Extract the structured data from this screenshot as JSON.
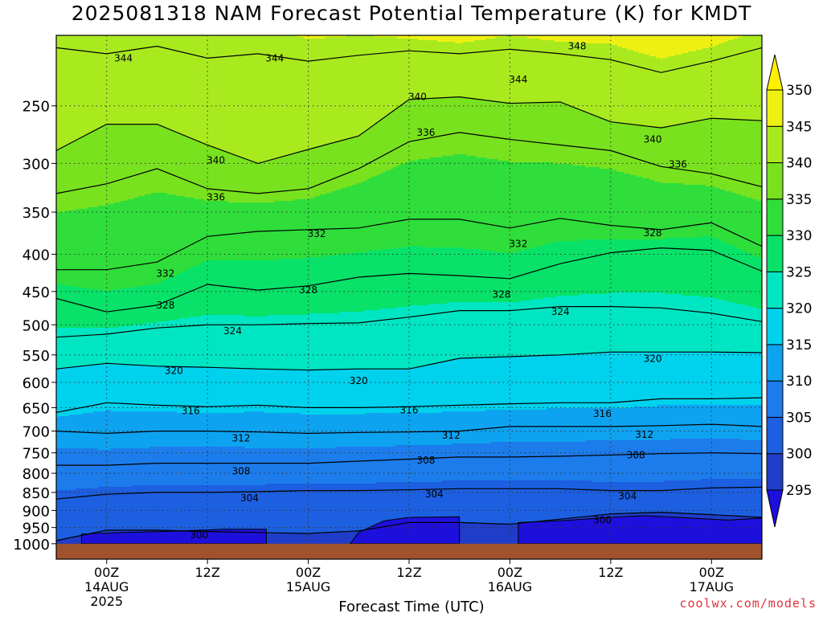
{
  "title": "2025081318 NAM Forecast Potential Temperature (K) for KMDT",
  "credit": "coolwx.com/models",
  "chart_data": {
    "type": "heatmap",
    "title": "2025081318 NAM Forecast Potential Temperature (K) for KMDT",
    "xlabel": "Forecast Time (UTC)",
    "ylabel": "",
    "y_scale": "log",
    "y_inverted": true,
    "ylim": [
      1050,
      200
    ],
    "y_ticks": [
      250,
      300,
      350,
      400,
      450,
      500,
      550,
      600,
      650,
      700,
      750,
      800,
      850,
      900,
      950,
      1000
    ],
    "x_range_hours": [
      0,
      84
    ],
    "x_ticks": [
      {
        "hour": 6,
        "label": [
          "00Z",
          "14AUG",
          "2025"
        ]
      },
      {
        "hour": 18,
        "label": [
          "12Z"
        ]
      },
      {
        "hour": 30,
        "label": [
          "00Z",
          "15AUG"
        ]
      },
      {
        "hour": 42,
        "label": [
          "12Z"
        ]
      },
      {
        "hour": 54,
        "label": [
          "00Z",
          "16AUG"
        ]
      },
      {
        "hour": 66,
        "label": [
          "12Z"
        ]
      },
      {
        "hour": 78,
        "label": [
          "00Z",
          "17AUG"
        ]
      }
    ],
    "grid": true,
    "colorbar": {
      "levels": [
        295,
        300,
        305,
        310,
        315,
        320,
        325,
        330,
        335,
        340,
        345,
        350
      ],
      "colors": [
        "#1e10dc",
        "#1f3dc8",
        "#1c5fe0",
        "#1c7ceb",
        "#0ea3f0",
        "#00d2ee",
        "#00e6c2",
        "#08e268",
        "#2fde3a",
        "#78e21e",
        "#a9ea1e",
        "#eef014",
        "#fff000"
      ],
      "labels": [
        "295",
        "300",
        "305",
        "310",
        "315",
        "320",
        "325",
        "330",
        "335",
        "340",
        "345",
        "350"
      ]
    },
    "contour_levels": [
      300,
      304,
      308,
      312,
      316,
      320,
      324,
      328,
      332,
      336,
      340,
      344,
      348
    ],
    "series": [
      {
        "theta": 344,
        "points": [
          [
            0,
            208
          ],
          [
            6,
            212
          ],
          [
            12,
            207
          ],
          [
            18,
            215
          ],
          [
            24,
            212
          ],
          [
            30,
            217
          ],
          [
            36,
            213
          ],
          [
            42,
            210
          ],
          [
            48,
            212
          ],
          [
            54,
            209
          ],
          [
            60,
            212
          ],
          [
            66,
            216
          ],
          [
            72,
            225
          ],
          [
            78,
            217
          ],
          [
            84,
            208
          ]
        ]
      },
      {
        "theta": 340,
        "points": [
          [
            0,
            288
          ],
          [
            6,
            265
          ],
          [
            12,
            265
          ],
          [
            18,
            283
          ],
          [
            24,
            300
          ],
          [
            30,
            287
          ],
          [
            36,
            275
          ],
          [
            42,
            245
          ],
          [
            48,
            243
          ],
          [
            54,
            248
          ],
          [
            60,
            247
          ],
          [
            66,
            263
          ],
          [
            72,
            268
          ],
          [
            78,
            260
          ],
          [
            84,
            262
          ]
        ]
      },
      {
        "theta": 336,
        "points": [
          [
            0,
            330
          ],
          [
            6,
            320
          ],
          [
            12,
            305
          ],
          [
            18,
            325
          ],
          [
            24,
            330
          ],
          [
            30,
            325
          ],
          [
            36,
            305
          ],
          [
            42,
            280
          ],
          [
            48,
            272
          ],
          [
            54,
            278
          ],
          [
            60,
            283
          ],
          [
            66,
            288
          ],
          [
            72,
            303
          ],
          [
            78,
            310
          ],
          [
            84,
            323
          ]
        ]
      },
      {
        "theta": 332,
        "points": [
          [
            0,
            420
          ],
          [
            6,
            420
          ],
          [
            12,
            410
          ],
          [
            18,
            378
          ],
          [
            24,
            372
          ],
          [
            30,
            370
          ],
          [
            36,
            368
          ],
          [
            42,
            358
          ],
          [
            48,
            358
          ],
          [
            54,
            368
          ],
          [
            60,
            357
          ],
          [
            66,
            365
          ],
          [
            72,
            370
          ],
          [
            78,
            362
          ],
          [
            84,
            390
          ]
        ]
      },
      {
        "theta": 328,
        "points": [
          [
            0,
            460
          ],
          [
            6,
            480
          ],
          [
            12,
            470
          ],
          [
            18,
            440
          ],
          [
            24,
            448
          ],
          [
            30,
            442
          ],
          [
            36,
            430
          ],
          [
            42,
            425
          ],
          [
            48,
            428
          ],
          [
            54,
            432
          ],
          [
            60,
            412
          ],
          [
            66,
            398
          ],
          [
            72,
            392
          ],
          [
            78,
            395
          ],
          [
            84,
            422
          ]
        ]
      },
      {
        "theta": 324,
        "points": [
          [
            0,
            520
          ],
          [
            6,
            515
          ],
          [
            12,
            505
          ],
          [
            18,
            500
          ],
          [
            24,
            500
          ],
          [
            30,
            498
          ],
          [
            36,
            497
          ],
          [
            42,
            488
          ],
          [
            48,
            478
          ],
          [
            54,
            478
          ],
          [
            60,
            472
          ],
          [
            66,
            472
          ],
          [
            72,
            474
          ],
          [
            78,
            482
          ],
          [
            84,
            495
          ]
        ]
      },
      {
        "theta": 320,
        "points": [
          [
            0,
            575
          ],
          [
            6,
            565
          ],
          [
            12,
            570
          ],
          [
            18,
            572
          ],
          [
            24,
            575
          ],
          [
            30,
            577
          ],
          [
            36,
            575
          ],
          [
            42,
            575
          ],
          [
            48,
            556
          ],
          [
            54,
            553
          ],
          [
            60,
            550
          ],
          [
            66,
            545
          ],
          [
            72,
            545
          ],
          [
            78,
            545
          ],
          [
            84,
            546
          ]
        ]
      },
      {
        "theta": 316,
        "points": [
          [
            0,
            660
          ],
          [
            6,
            640
          ],
          [
            12,
            645
          ],
          [
            18,
            648
          ],
          [
            24,
            645
          ],
          [
            30,
            650
          ],
          [
            36,
            650
          ],
          [
            42,
            648
          ],
          [
            48,
            645
          ],
          [
            54,
            642
          ],
          [
            60,
            640
          ],
          [
            66,
            640
          ],
          [
            72,
            632
          ],
          [
            78,
            632
          ],
          [
            84,
            630
          ]
        ]
      },
      {
        "theta": 312,
        "points": [
          [
            0,
            700
          ],
          [
            6,
            705
          ],
          [
            12,
            700
          ],
          [
            18,
            700
          ],
          [
            24,
            702
          ],
          [
            30,
            705
          ],
          [
            36,
            703
          ],
          [
            42,
            702
          ],
          [
            48,
            700
          ],
          [
            54,
            690
          ],
          [
            60,
            690
          ],
          [
            66,
            690
          ],
          [
            72,
            688
          ],
          [
            78,
            685
          ],
          [
            84,
            690
          ]
        ]
      },
      {
        "theta": 308,
        "points": [
          [
            0,
            780
          ],
          [
            6,
            780
          ],
          [
            12,
            775
          ],
          [
            18,
            775
          ],
          [
            24,
            775
          ],
          [
            30,
            775
          ],
          [
            36,
            770
          ],
          [
            42,
            765
          ],
          [
            48,
            760
          ],
          [
            54,
            760
          ],
          [
            60,
            758
          ],
          [
            66,
            755
          ],
          [
            72,
            752
          ],
          [
            78,
            750
          ],
          [
            84,
            752
          ]
        ]
      },
      {
        "theta": 304,
        "points": [
          [
            0,
            868
          ],
          [
            6,
            855
          ],
          [
            12,
            850
          ],
          [
            18,
            850
          ],
          [
            24,
            848
          ],
          [
            30,
            845
          ],
          [
            36,
            845
          ],
          [
            42,
            843
          ],
          [
            48,
            840
          ],
          [
            54,
            840
          ],
          [
            60,
            840
          ],
          [
            66,
            845
          ],
          [
            72,
            845
          ],
          [
            78,
            838
          ],
          [
            84,
            836
          ]
        ]
      },
      {
        "theta": 300,
        "points": [
          [
            0,
            990
          ],
          [
            6,
            958
          ],
          [
            12,
            958
          ],
          [
            18,
            962
          ],
          [
            24,
            965
          ],
          [
            30,
            968
          ],
          [
            36,
            960
          ],
          [
            42,
            935
          ],
          [
            48,
            935
          ],
          [
            54,
            940
          ],
          [
            60,
            925
          ],
          [
            66,
            910
          ],
          [
            72,
            905
          ],
          [
            78,
            912
          ],
          [
            84,
            920
          ]
        ]
      }
    ],
    "contour_labels": [
      {
        "text": "348",
        "hour": 62,
        "p": 207
      },
      {
        "text": "344",
        "hour": 8,
        "p": 215
      },
      {
        "text": "344",
        "hour": 26,
        "p": 215
      },
      {
        "text": "344",
        "hour": 55,
        "p": 230
      },
      {
        "text": "340",
        "hour": 43,
        "p": 243
      },
      {
        "text": "340",
        "hour": 19,
        "p": 297
      },
      {
        "text": "340",
        "hour": 71,
        "p": 278
      },
      {
        "text": "336",
        "hour": 44,
        "p": 272
      },
      {
        "text": "336",
        "hour": 19,
        "p": 334
      },
      {
        "text": "336",
        "hour": 74,
        "p": 301
      },
      {
        "text": "332",
        "hour": 31,
        "p": 375
      },
      {
        "text": "332",
        "hour": 55,
        "p": 387
      },
      {
        "text": "332",
        "hour": 13,
        "p": 425
      },
      {
        "text": "328",
        "hour": 71,
        "p": 374
      },
      {
        "text": "328",
        "hour": 30,
        "p": 448
      },
      {
        "text": "328",
        "hour": 53,
        "p": 454
      },
      {
        "text": "328",
        "hour": 13,
        "p": 470
      },
      {
        "text": "324",
        "hour": 60,
        "p": 480
      },
      {
        "text": "324",
        "hour": 21,
        "p": 510
      },
      {
        "text": "320",
        "hour": 71,
        "p": 557
      },
      {
        "text": "320",
        "hour": 14,
        "p": 578
      },
      {
        "text": "320",
        "hour": 36,
        "p": 597
      },
      {
        "text": "316",
        "hour": 42,
        "p": 655
      },
      {
        "text": "316",
        "hour": 16,
        "p": 657
      },
      {
        "text": "316",
        "hour": 65,
        "p": 663
      },
      {
        "text": "312",
        "hour": 22,
        "p": 716
      },
      {
        "text": "312",
        "hour": 47,
        "p": 710
      },
      {
        "text": "312",
        "hour": 70,
        "p": 708
      },
      {
        "text": "308",
        "hour": 44,
        "p": 768
      },
      {
        "text": "308",
        "hour": 69,
        "p": 755
      },
      {
        "text": "308",
        "hour": 22,
        "p": 795
      },
      {
        "text": "304",
        "hour": 45,
        "p": 855
      },
      {
        "text": "304",
        "hour": 68,
        "p": 860
      },
      {
        "text": "304",
        "hour": 23,
        "p": 865
      },
      {
        "text": "300",
        "hour": 65,
        "p": 928
      },
      {
        "text": "300",
        "hour": 17,
        "p": 973
      }
    ],
    "cold_pools": [
      {
        "points": [
          [
            3,
            1000
          ],
          [
            3,
            970
          ],
          [
            8,
            965
          ],
          [
            15,
            960
          ],
          [
            20,
            955
          ],
          [
            25,
            955
          ],
          [
            25,
            990
          ],
          [
            25,
            1000
          ]
        ]
      },
      {
        "points": [
          [
            35,
            1000
          ],
          [
            36,
            965
          ],
          [
            39,
            930
          ],
          [
            42,
            920
          ],
          [
            48,
            918
          ],
          [
            48,
            970
          ],
          [
            48,
            1000
          ]
        ]
      },
      {
        "points": [
          [
            55,
            1000
          ],
          [
            55,
            935
          ],
          [
            60,
            930
          ],
          [
            66,
            920
          ],
          [
            70,
            915
          ],
          [
            74,
            920
          ],
          [
            80,
            928
          ],
          [
            84,
            922
          ],
          [
            84,
            980
          ],
          [
            84,
            1000
          ]
        ]
      }
    ]
  }
}
